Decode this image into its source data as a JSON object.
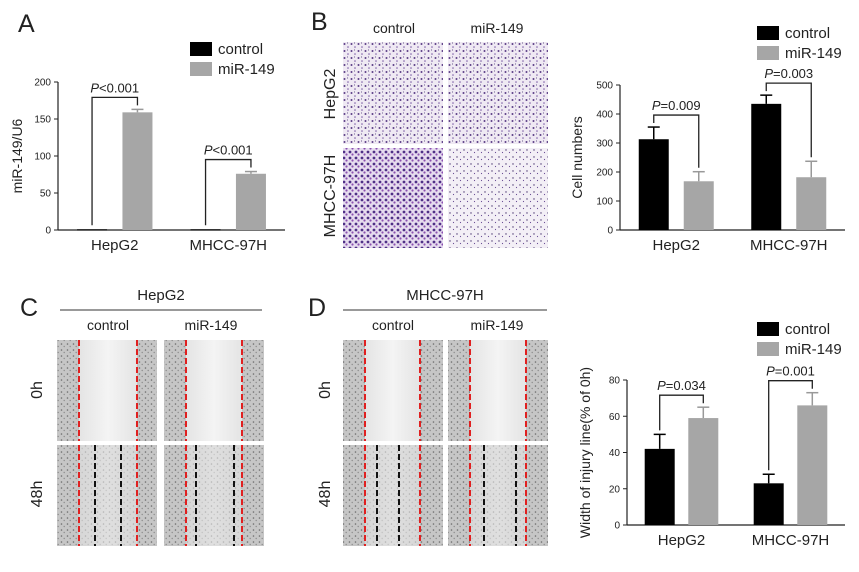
{
  "panels": {
    "A": {
      "label": "A"
    },
    "B": {
      "label": "B",
      "cols": [
        "control",
        "miR-149"
      ],
      "rows": [
        "HepG2",
        "MHCC-97H"
      ]
    },
    "C": {
      "label": "C",
      "title": "HepG2",
      "cols": [
        "control",
        "miR-149"
      ],
      "rows": [
        "0h",
        "48h"
      ]
    },
    "D": {
      "label": "D",
      "title": "MHCC-97H",
      "cols": [
        "control",
        "miR-149"
      ],
      "rows": [
        "0h",
        "48h"
      ]
    }
  },
  "colors": {
    "control": "#000000",
    "miR149": "#a6a6a6"
  },
  "chart_data": [
    {
      "type": "bar",
      "panel": "A",
      "ylabel": "miR-149/U6",
      "categories": [
        "HepG2",
        "MHCC-97H"
      ],
      "yticks": [
        0,
        50,
        100,
        150,
        200
      ],
      "ylim": [
        0,
        200
      ],
      "series": [
        {
          "name": "control",
          "values": [
            1,
            1
          ],
          "errors": [
            0,
            0
          ]
        },
        {
          "name": "miR-149",
          "values": [
            159,
            76
          ],
          "errors": [
            4,
            3
          ]
        }
      ],
      "annotations": [
        {
          "prefix": "P",
          "text": "<0.001",
          "category": 0
        },
        {
          "prefix": "P",
          "text": "<0.001",
          "category": 1
        }
      ],
      "legend": "top-right"
    },
    {
      "type": "bar",
      "panel": "B",
      "ylabel": "Cell numbers",
      "categories": [
        "HepG2",
        "MHCC-97H"
      ],
      "yticks": [
        0,
        100,
        200,
        300,
        400,
        500
      ],
      "ylim": [
        0,
        500
      ],
      "series": [
        {
          "name": "control",
          "values": [
            313,
            435
          ],
          "errors": [
            42,
            30
          ]
        },
        {
          "name": "miR-149",
          "values": [
            168,
            182
          ],
          "errors": [
            33,
            55
          ]
        }
      ],
      "annotations": [
        {
          "prefix": "P",
          "text": "=0.009",
          "category": 0
        },
        {
          "prefix": "P",
          "text": "=0.003",
          "category": 1
        }
      ],
      "legend": "top-right"
    },
    {
      "type": "bar",
      "panel": "D",
      "ylabel": "Width of injury line(% of 0h)",
      "categories": [
        "HepG2",
        "MHCC-97H"
      ],
      "yticks": [
        0,
        20,
        40,
        60,
        80
      ],
      "ylim": [
        0,
        80
      ],
      "series": [
        {
          "name": "control",
          "values": [
            42,
            23
          ],
          "errors": [
            8,
            5
          ]
        },
        {
          "name": "miR-149",
          "values": [
            59,
            66
          ],
          "errors": [
            6,
            7
          ]
        }
      ],
      "annotations": [
        {
          "prefix": "P",
          "text": "=0.034",
          "category": 0
        },
        {
          "prefix": "P",
          "text": "=0.001",
          "category": 1
        }
      ],
      "legend": "top-right"
    }
  ]
}
